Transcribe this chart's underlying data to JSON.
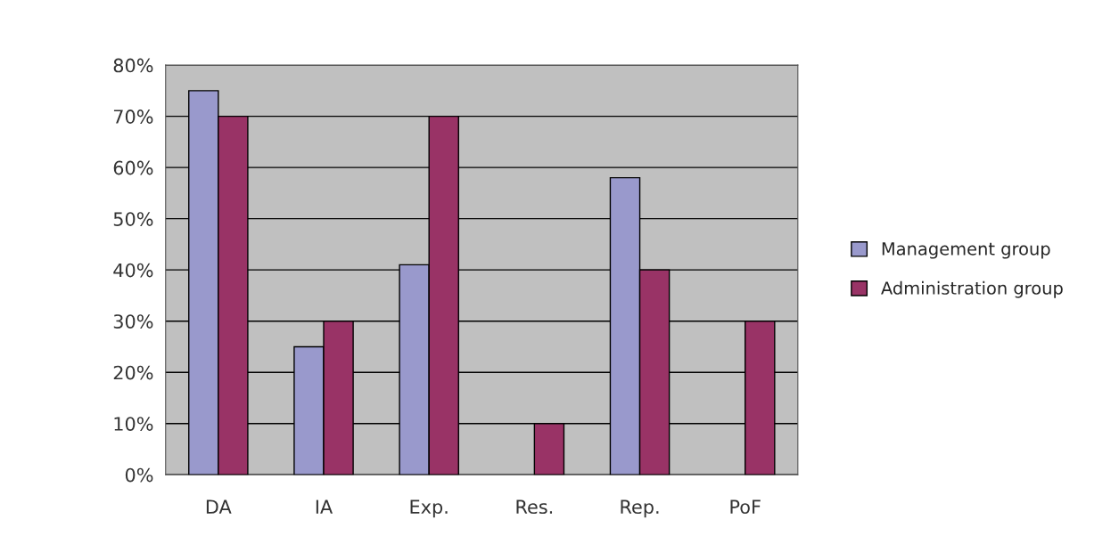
{
  "chart_data": {
    "type": "bar",
    "categories": [
      "DA",
      "IA",
      "Exp.",
      "Res.",
      "Rep.",
      "PoF"
    ],
    "series": [
      {
        "name": "Management group",
        "color": "#9999cc",
        "values": [
          75,
          25,
          41,
          null,
          58,
          null
        ]
      },
      {
        "name": "Administration group",
        "color": "#993366",
        "values": [
          70,
          30,
          70,
          10,
          40,
          30
        ]
      }
    ],
    "ylim": [
      0,
      80
    ],
    "yticks": [
      {
        "value": 0,
        "label": "0%"
      },
      {
        "value": 10,
        "label": "10%"
      },
      {
        "value": 20,
        "label": "20%"
      },
      {
        "value": 30,
        "label": "30%"
      },
      {
        "value": 40,
        "label": "40%"
      },
      {
        "value": 50,
        "label": "50%"
      },
      {
        "value": 60,
        "label": "60%"
      },
      {
        "value": 70,
        "label": "70%"
      },
      {
        "value": 80,
        "label": "80%"
      }
    ],
    "grid": "y",
    "legend": "right"
  }
}
